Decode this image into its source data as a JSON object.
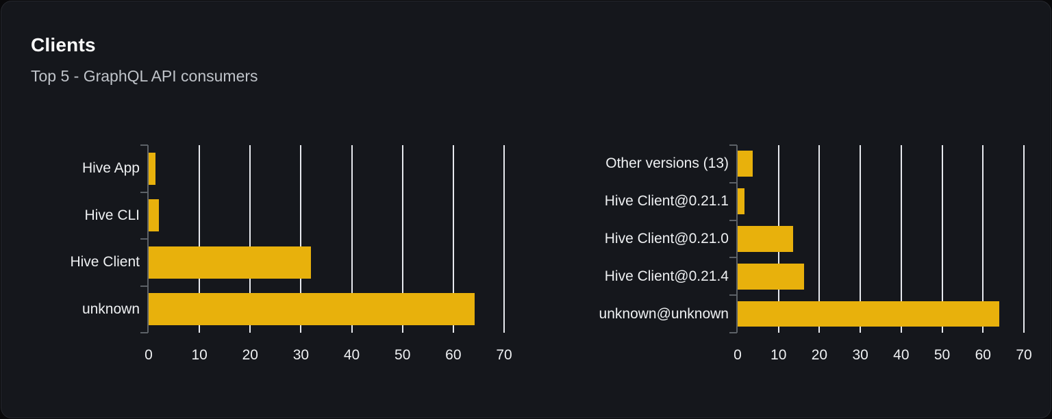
{
  "header": {
    "title": "Clients",
    "subtitle": "Top 5 - GraphQL API consumers"
  },
  "colors": {
    "page_background": "#09090b",
    "card_background": "#15171c",
    "card_border": "#26282e",
    "bar": "#e8b10c",
    "gridline": "#e8eaef",
    "axis": "#5c6167",
    "label_text": "#eef0f2",
    "title_text": "#fafafa",
    "subtitle_text": "#bfc3c9"
  },
  "chart_data": [
    {
      "type": "bar",
      "orientation": "horizontal",
      "title": "",
      "categories": [
        "Hive App",
        "Hive CLI",
        "Hive Client",
        "unknown"
      ],
      "values": [
        1.4,
        2,
        32,
        64.2
      ],
      "xlim": [
        0,
        70
      ],
      "xticks": [
        0,
        10,
        20,
        30,
        40,
        50,
        60,
        70
      ],
      "grid": true,
      "legend": false,
      "bar_color": "#e8b10c"
    },
    {
      "type": "bar",
      "orientation": "horizontal",
      "title": "",
      "categories": [
        "Other versions (13)",
        "Hive Client@0.21.1",
        "Hive Client@0.21.0",
        "Hive Client@0.21.4",
        "unknown@unknown"
      ],
      "values": [
        3.7,
        1.6,
        13.6,
        16.3,
        63.9
      ],
      "xlim": [
        0,
        70
      ],
      "xticks": [
        0,
        10,
        20,
        30,
        40,
        50,
        60,
        70
      ],
      "grid": true,
      "legend": false,
      "bar_color": "#e8b10c"
    }
  ]
}
